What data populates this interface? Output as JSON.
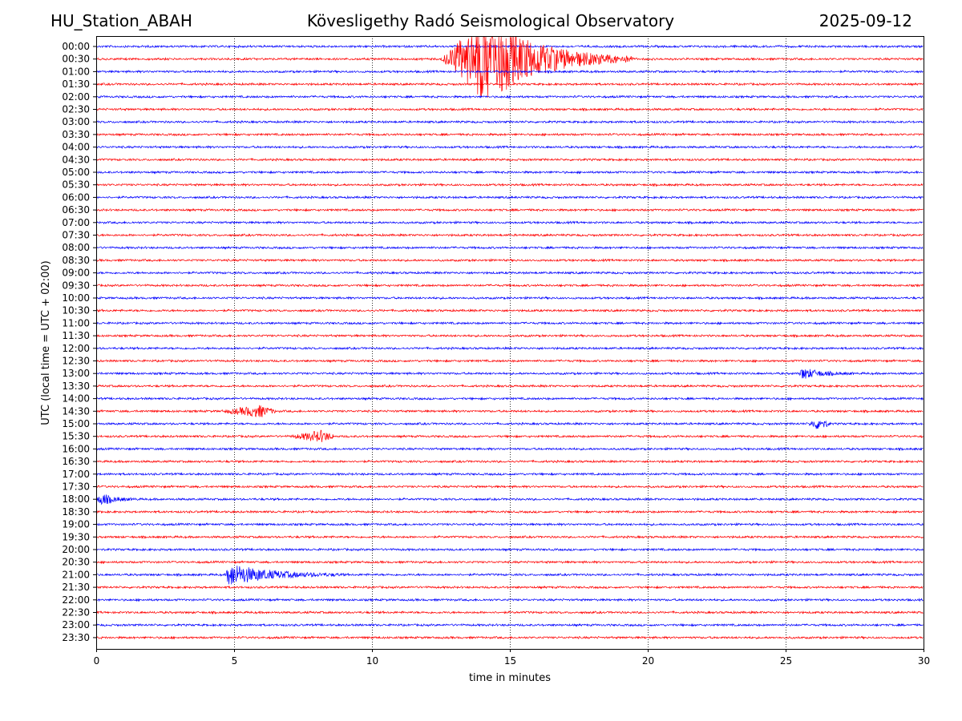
{
  "header": {
    "station": "HU_Station_ABAH",
    "observatory": "Kövesligethy Radó Seismological Observatory",
    "date": "2025-09-12"
  },
  "chart_data": {
    "type": "line",
    "title": "Kövesligethy Radó Seismological Observatory",
    "xlabel": "time in minutes",
    "ylabel": "UTC (local time = UTC + 02:00)",
    "xlim": [
      0,
      30
    ],
    "x_ticks": [
      0,
      5,
      10,
      15,
      20,
      25,
      30
    ],
    "grid_x": true,
    "rows": [
      "00:00",
      "00:30",
      "01:00",
      "01:30",
      "02:00",
      "02:30",
      "03:00",
      "03:30",
      "04:00",
      "04:30",
      "05:00",
      "05:30",
      "06:00",
      "06:30",
      "07:00",
      "07:30",
      "08:00",
      "08:30",
      "09:00",
      "09:30",
      "10:00",
      "10:30",
      "11:00",
      "11:30",
      "12:00",
      "12:30",
      "13:00",
      "13:30",
      "14:00",
      "14:30",
      "15:00",
      "15:30",
      "16:00",
      "16:30",
      "17:00",
      "17:30",
      "18:00",
      "18:30",
      "19:00",
      "19:30",
      "20:00",
      "20:30",
      "21:00",
      "21:30",
      "22:00",
      "22:30",
      "23:00",
      "23:30"
    ],
    "trace_colors": [
      "#0000ff",
      "#ff0000"
    ],
    "events": [
      {
        "row": "00:30",
        "start_min": 12.5,
        "peak_min": 14.2,
        "end_min": 19.5,
        "amplitude": "large"
      },
      {
        "row": "21:00",
        "start_min": 4.7,
        "peak_min": 4.8,
        "end_min": 9.0,
        "amplitude": "medium"
      },
      {
        "row": "13:00",
        "start_min": 25.5,
        "peak_min": 25.6,
        "end_min": 27.5,
        "amplitude": "small"
      },
      {
        "row": "15:30",
        "start_min": 7.0,
        "peak_min": 8.2,
        "end_min": 8.6,
        "amplitude": "small"
      },
      {
        "row": "18:00",
        "start_min": 0.0,
        "peak_min": 0.2,
        "end_min": 1.5,
        "amplitude": "small"
      },
      {
        "row": "14:30",
        "start_min": 4.5,
        "peak_min": 6.0,
        "end_min": 6.5,
        "amplitude": "small"
      },
      {
        "row": "15:00",
        "start_min": 25.8,
        "peak_min": 26.2,
        "end_min": 26.6,
        "amplitude": "small"
      }
    ]
  }
}
